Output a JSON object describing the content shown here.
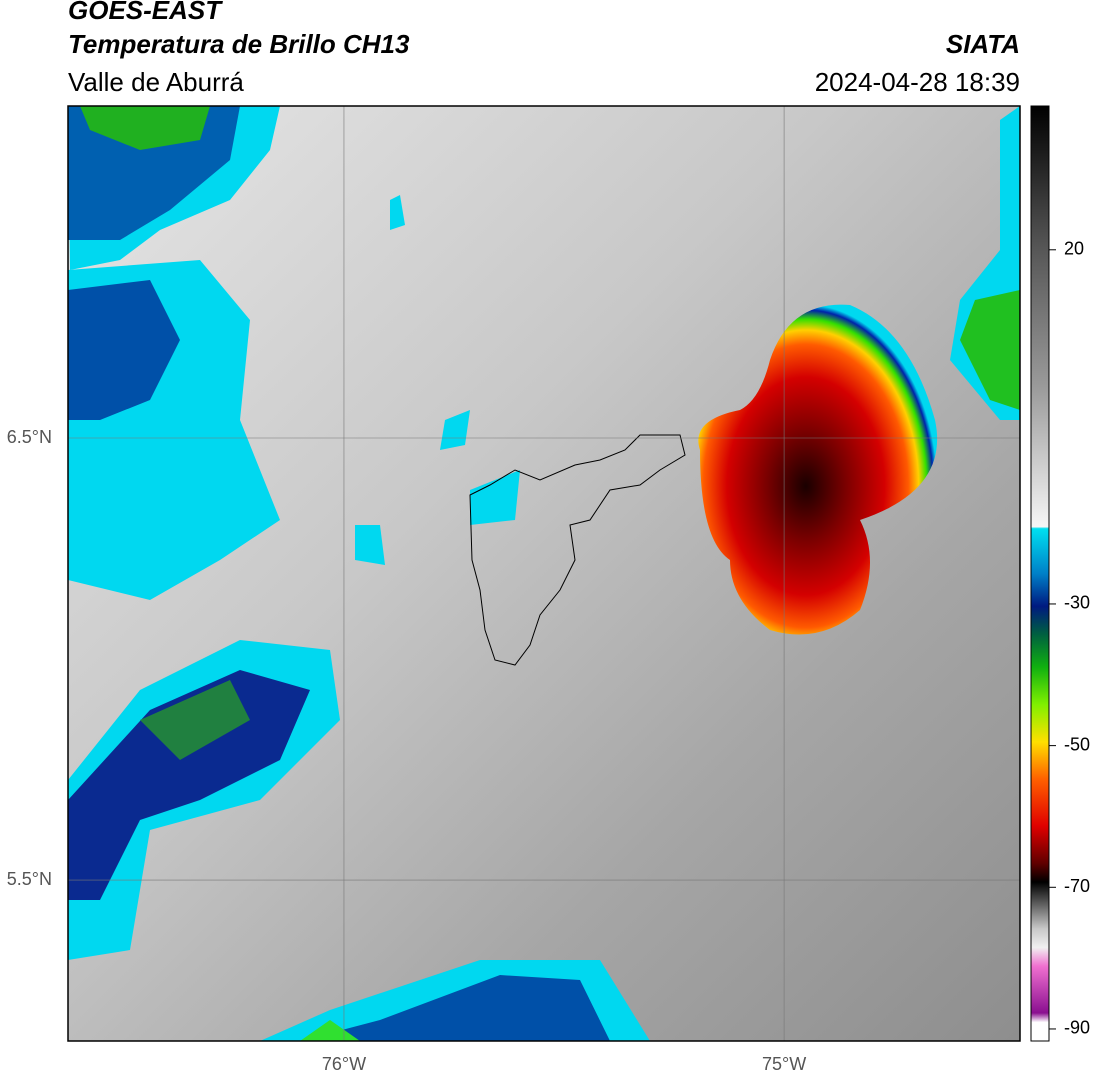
{
  "header": {
    "satellite": "GOES-EAST",
    "product": "Temperatura de Brillo CH13",
    "region": "Valle de Aburrá",
    "agency": "SIATA",
    "datetime": "2024-04-28 18:39"
  },
  "map": {
    "xlim": [
      -76.627,
      -74.464
    ],
    "ylim": [
      5.136,
      7.251
    ],
    "xticks": [
      {
        "value": -76,
        "label": "76°W"
      },
      {
        "value": -75,
        "label": "75°W"
      }
    ],
    "yticks": [
      {
        "value": 6.5,
        "label": "6.5°N"
      },
      {
        "value": 5.5,
        "label": "5.5°N"
      }
    ]
  },
  "colorbar": {
    "lim": [
      -91.7,
      40.3
    ],
    "ticks": [
      20,
      -30,
      -50,
      -70,
      -90
    ]
  }
}
